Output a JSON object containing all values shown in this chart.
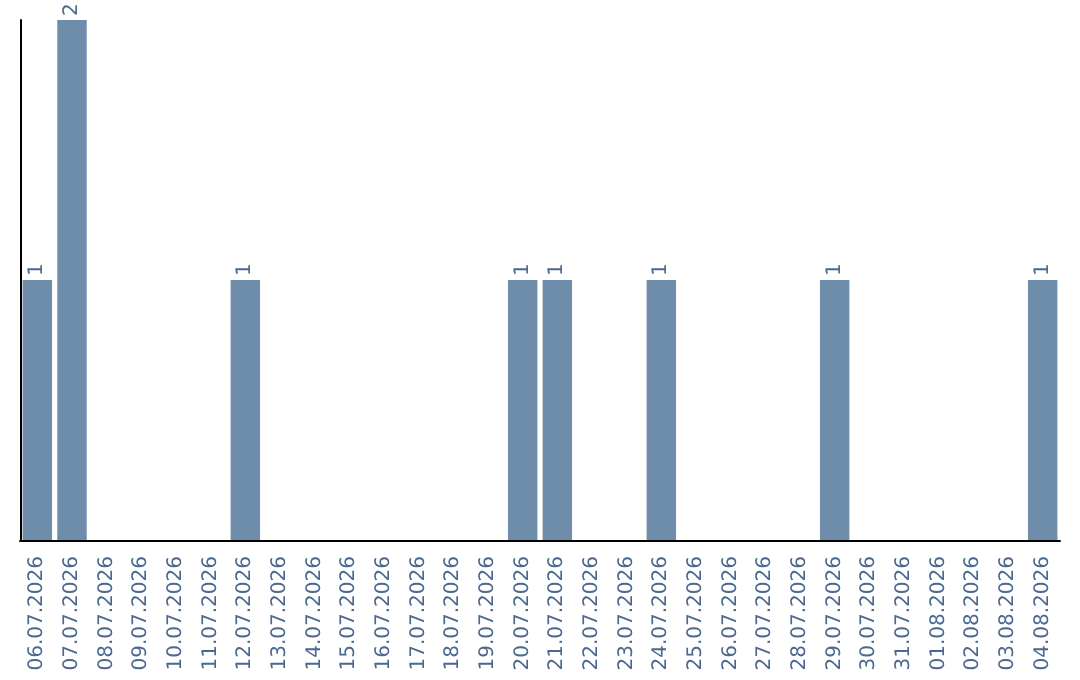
{
  "chart_data": {
    "type": "bar",
    "categories": [
      "06.07.2026",
      "07.07.2026",
      "08.07.2026",
      "09.07.2026",
      "10.07.2026",
      "11.07.2026",
      "12.07.2026",
      "13.07.2026",
      "14.07.2026",
      "15.07.2026",
      "16.07.2026",
      "17.07.2026",
      "18.07.2026",
      "19.07.2026",
      "20.07.2026",
      "21.07.2026",
      "22.07.2026",
      "23.07.2026",
      "24.07.2026",
      "25.07.2026",
      "26.07.2026",
      "27.07.2026",
      "28.07.2026",
      "29.07.2026",
      "30.07.2026",
      "31.07.2026",
      "01.08.2026",
      "02.08.2026",
      "03.08.2026",
      "04.08.2026"
    ],
    "values": [
      1,
      2,
      0,
      0,
      0,
      0,
      1,
      0,
      0,
      0,
      0,
      0,
      0,
      0,
      1,
      1,
      0,
      0,
      1,
      0,
      0,
      0,
      0,
      1,
      0,
      0,
      0,
      0,
      0,
      1
    ],
    "value_labels": [
      "1",
      "2",
      null,
      null,
      null,
      null,
      "1",
      null,
      null,
      null,
      null,
      null,
      null,
      null,
      "1",
      "1",
      null,
      null,
      "1",
      null,
      null,
      null,
      null,
      "1",
      null,
      null,
      null,
      null,
      null,
      "1"
    ],
    "color": "#6e8dab",
    "tick_labels": "x"
  }
}
